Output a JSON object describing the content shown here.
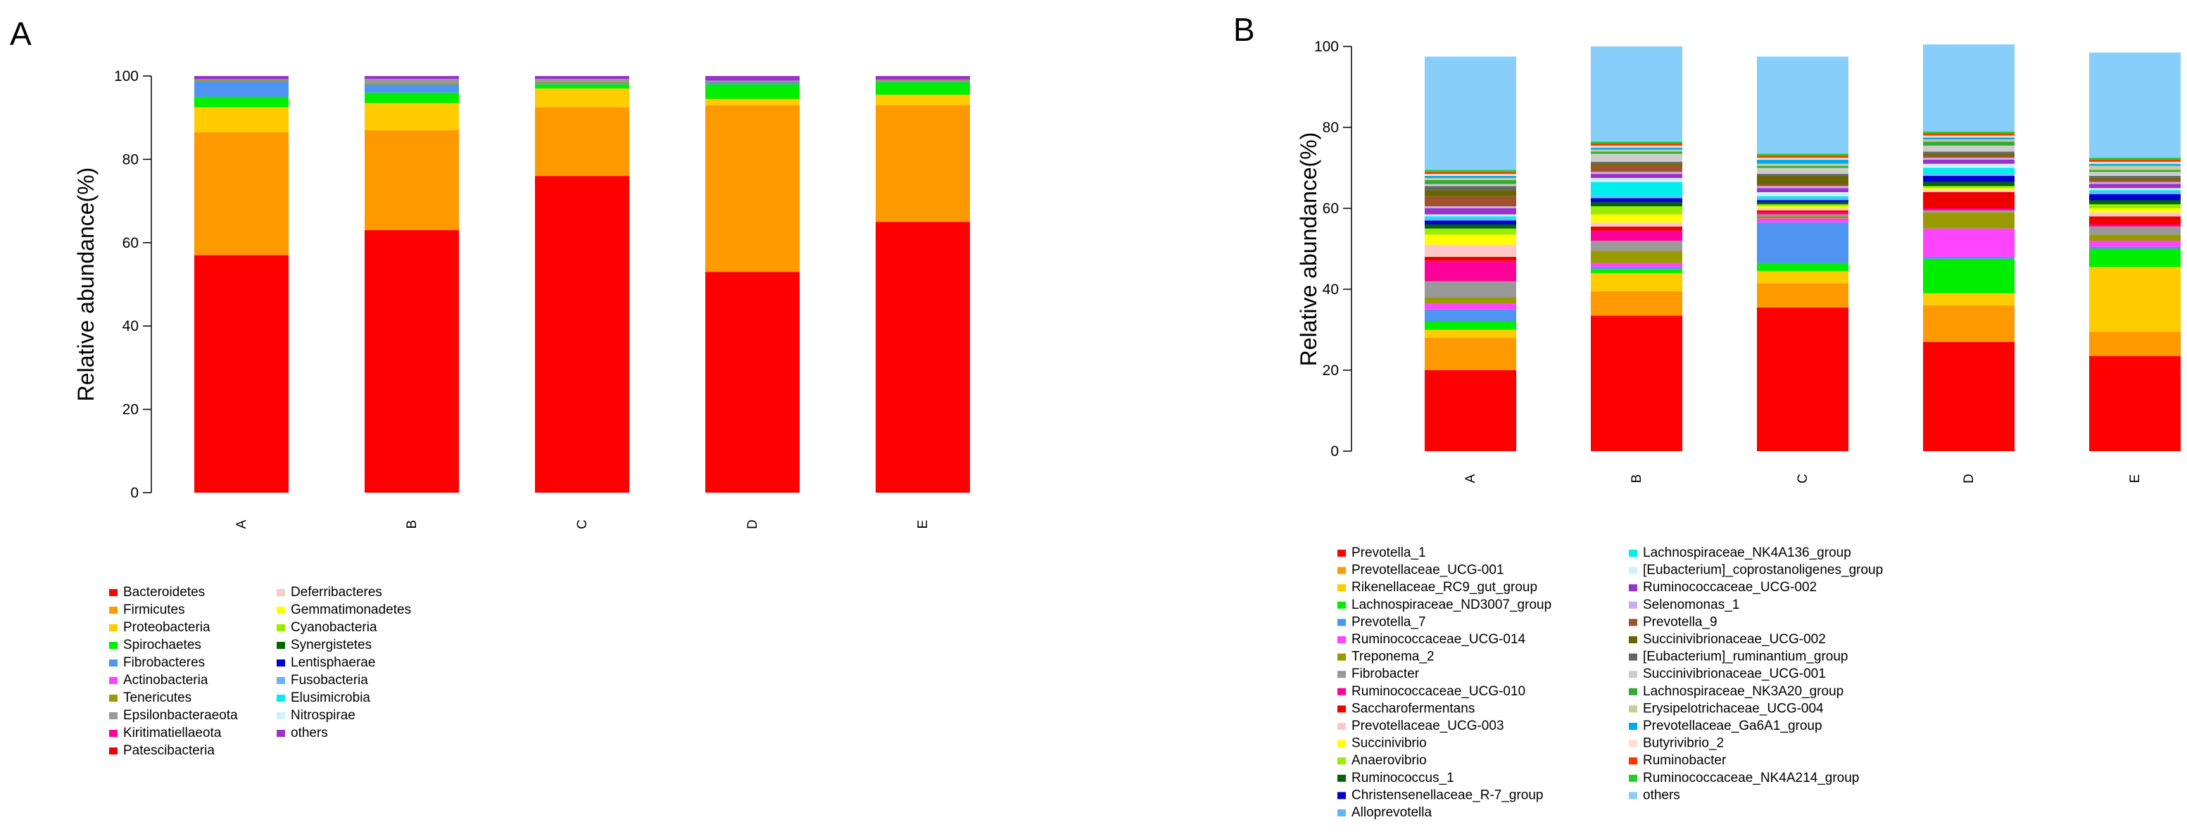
{
  "panel_labels": [
    "A",
    "B"
  ],
  "chart_data": [
    {
      "type": "bar",
      "stacked": true,
      "panel": "A",
      "categories": [
        "A",
        "B",
        "C",
        "D",
        "E"
      ],
      "ylabel": "Relative abundance(%)",
      "ylim": [
        0,
        100
      ],
      "yticks": [
        0,
        20,
        40,
        60,
        80,
        100
      ],
      "grid": false,
      "legend_position": "bottom",
      "legend_columns": 2,
      "series": [
        {
          "name": "Bacteroidetes",
          "color": "#FF0000",
          "values": [
            57,
            63,
            76,
            53,
            65
          ]
        },
        {
          "name": "Firmicutes",
          "color": "#FF9900",
          "values": [
            29.5,
            24,
            16.5,
            40,
            28
          ]
        },
        {
          "name": "Proteobacteria",
          "color": "#FFCC00",
          "values": [
            6,
            6.5,
            4.5,
            1.5,
            2.5
          ]
        },
        {
          "name": "Spirochaetes",
          "color": "#00EE00",
          "values": [
            2.5,
            2.5,
            1,
            3.5,
            3
          ]
        },
        {
          "name": "Fibrobacteres",
          "color": "#4F94F0",
          "values": [
            3.8,
            2,
            0.3,
            0.5,
            0.2
          ]
        },
        {
          "name": "Actinobacteria",
          "color": "#FF44FF",
          "values": [
            0,
            0,
            0,
            0,
            0
          ]
        },
        {
          "name": "Tenericutes",
          "color": "#999900",
          "values": [
            0.2,
            0.3,
            0.2,
            0.2,
            0.2
          ]
        },
        {
          "name": "Epsilonbacteraeota",
          "color": "#999999",
          "values": [
            0.2,
            1,
            0.8,
            0.2,
            0.2
          ]
        },
        {
          "name": "Kiritimatiellaeota",
          "color": "#FF0099",
          "values": [
            0,
            0,
            0,
            0,
            0
          ]
        },
        {
          "name": "Patescibacteria",
          "color": "#EE0000",
          "values": [
            0,
            0,
            0,
            0,
            0
          ]
        },
        {
          "name": "Deferribacteres",
          "color": "#FFC8C8",
          "values": [
            0,
            0,
            0,
            0,
            0
          ]
        },
        {
          "name": "Gemmatimonadetes",
          "color": "#FFFF00",
          "values": [
            0,
            0,
            0,
            0,
            0
          ]
        },
        {
          "name": "Cyanobacteria",
          "color": "#99EE00",
          "values": [
            0,
            0,
            0,
            0,
            0
          ]
        },
        {
          "name": "Synergistetes",
          "color": "#006600",
          "values": [
            0,
            0,
            0,
            0,
            0
          ]
        },
        {
          "name": "Lentisphaerae",
          "color": "#0000CC",
          "values": [
            0,
            0,
            0,
            0,
            0
          ]
        },
        {
          "name": "Fusobacteria",
          "color": "#66B2FF",
          "values": [
            0,
            0,
            0,
            0,
            0
          ]
        },
        {
          "name": "Elusimicrobia",
          "color": "#00EEEE",
          "values": [
            0,
            0,
            0,
            0,
            0
          ]
        },
        {
          "name": "Nitrospirae",
          "color": "#CCF2FF",
          "values": [
            0,
            0,
            0,
            0,
            0
          ]
        },
        {
          "name": "others",
          "color": "#9933CC",
          "values": [
            0.8,
            0.7,
            0.7,
            1.1,
            0.9
          ]
        }
      ]
    },
    {
      "type": "bar",
      "stacked": true,
      "panel": "B",
      "categories": [
        "A",
        "B",
        "C",
        "D",
        "E"
      ],
      "ylabel": "Relative abundance(%)",
      "ylim": [
        0,
        100
      ],
      "yticks": [
        0,
        20,
        40,
        60,
        80,
        100
      ],
      "grid": false,
      "legend_position": "bottom",
      "legend_columns": 2,
      "series": [
        {
          "name": "Prevotella_1",
          "color": "#FF0000",
          "values": [
            20,
            33.5,
            35.5,
            27,
            23.5
          ]
        },
        {
          "name": "Prevotellaceae_UCG-001",
          "color": "#FF9900",
          "values": [
            8,
            6,
            6,
            9,
            6
          ]
        },
        {
          "name": "Rikenellaceae_RC9_gut_group",
          "color": "#FFCC00",
          "values": [
            2,
            4.5,
            3,
            3,
            16
          ]
        },
        {
          "name": "Lachnospiraceae_ND3007_group",
          "color": "#00EE00",
          "values": [
            2,
            1,
            2,
            8.5,
            4.5
          ]
        },
        {
          "name": "Prevotella_7",
          "color": "#4F94F0",
          "values": [
            3,
            0.5,
            10,
            0.5,
            0.5
          ]
        },
        {
          "name": "Ruminococcaceae_UCG-014",
          "color": "#FF44FF",
          "values": [
            1.5,
            1,
            1,
            7,
            1.5
          ]
        },
        {
          "name": "Treponema_2",
          "color": "#999900",
          "values": [
            1.5,
            3,
            0.5,
            4,
            1.5
          ]
        },
        {
          "name": "Fibrobacter",
          "color": "#999999",
          "values": [
            4,
            2.5,
            0.5,
            0.5,
            2
          ]
        },
        {
          "name": "Ruminococcaceae_UCG-010",
          "color": "#FF0099",
          "values": [
            5,
            2.5,
            0.5,
            0.5,
            0.5
          ]
        },
        {
          "name": "Saccharofermentans",
          "color": "#EE0000",
          "values": [
            1,
            1,
            0.5,
            4,
            2
          ]
        },
        {
          "name": "Prevotellaceae_UCG-003",
          "color": "#FFC8C8",
          "values": [
            3,
            1,
            0.5,
            0.5,
            1
          ]
        },
        {
          "name": "Succinivibrio",
          "color": "#FFFF00",
          "values": [
            2.5,
            2,
            0.5,
            0.5,
            1
          ]
        },
        {
          "name": "Anaerovibrio",
          "color": "#99EE00",
          "values": [
            1.5,
            2,
            0.5,
            0.5,
            1
          ]
        },
        {
          "name": "Ruminococcus_1",
          "color": "#006600",
          "values": [
            1,
            1,
            0.5,
            1,
            1
          ]
        },
        {
          "name": "Christensenellaceae_R-7_group",
          "color": "#0000CC",
          "values": [
            1,
            1,
            0.5,
            1.5,
            1.5
          ]
        },
        {
          "name": "Alloprevotella",
          "color": "#66B2FF",
          "values": [
            0.5,
            0.5,
            0.5,
            0.5,
            0.5
          ]
        },
        {
          "name": "Lachnospiraceae_NK4A136_group",
          "color": "#00EEEE",
          "values": [
            0.5,
            3.5,
            0.5,
            1.5,
            0.5
          ]
        },
        {
          "name": "[Eubacterium]_coprostanoligenes_group",
          "color": "#CCF2FF",
          "values": [
            0.5,
            1,
            1,
            1,
            0.5
          ]
        },
        {
          "name": "Ruminococcaceae_UCG-002",
          "color": "#9933CC",
          "values": [
            1.5,
            1,
            1,
            1,
            1
          ]
        },
        {
          "name": "Selenomonas_1",
          "color": "#CCAAEE",
          "values": [
            0.5,
            0.5,
            0.5,
            0.5,
            0.5
          ]
        },
        {
          "name": "Prevotella_9",
          "color": "#A0522D",
          "values": [
            2.5,
            1.5,
            0.5,
            0.5,
            0.5
          ]
        },
        {
          "name": "Succinivibrionaceae_UCG-002",
          "color": "#666600",
          "values": [
            1.5,
            0.5,
            2,
            0.5,
            0.5
          ]
        },
        {
          "name": "[Eubacterium]_ruminantium_group",
          "color": "#666666",
          "values": [
            1,
            0.5,
            0.5,
            0.5,
            0.5
          ]
        },
        {
          "name": "Succinivibrionaceae_UCG-001",
          "color": "#CCCCCC",
          "values": [
            0.5,
            2,
            1.5,
            1.5,
            1
          ]
        },
        {
          "name": "Lachnospiraceae_NK3A20_group",
          "color": "#33AA33",
          "values": [
            1,
            0.5,
            0.5,
            1,
            0.5
          ]
        },
        {
          "name": "Erysipelotrichaceae_UCG-004",
          "color": "#CCCC99",
          "values": [
            0.5,
            0.5,
            0.5,
            0.5,
            1
          ]
        },
        {
          "name": "Prevotellaceae_Ga6A1_group",
          "color": "#00AAEE",
          "values": [
            0.5,
            0.5,
            1,
            0.5,
            0.5
          ]
        },
        {
          "name": "Butyrivibrio_2",
          "color": "#FFDDCC",
          "values": [
            0.5,
            0.5,
            0.5,
            0.5,
            0.5
          ]
        },
        {
          "name": "Ruminobacter",
          "color": "#FF3300",
          "values": [
            0.5,
            0.5,
            0.5,
            0.5,
            0.5
          ]
        },
        {
          "name": "Ruminococcaceae_NK4A214_group",
          "color": "#22CC22",
          "values": [
            0.5,
            0.5,
            0.5,
            0.5,
            0.5
          ]
        },
        {
          "name": "others",
          "color": "#87CEFA",
          "values": [
            28,
            23.5,
            24,
            21.5,
            26
          ]
        }
      ]
    }
  ]
}
